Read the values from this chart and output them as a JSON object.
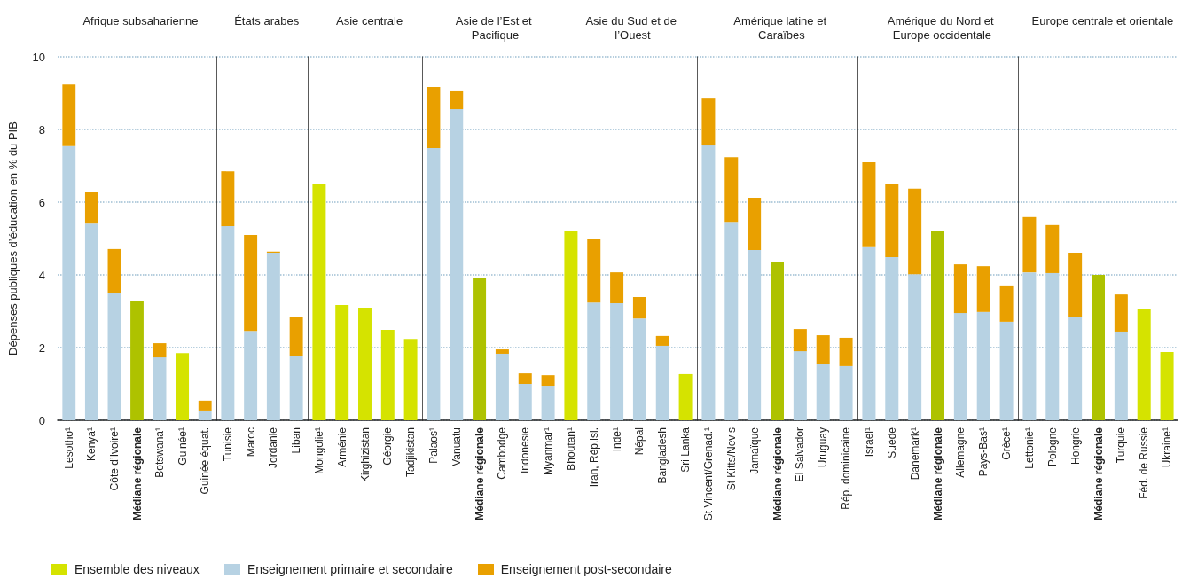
{
  "chart_data": [
    {
      "type": "bar",
      "title": "Afrique subsaharienne",
      "ylabel": "Dépenses publiques d’éducation en % du PIB",
      "categories": [
        "Lesotho¹",
        "Kenya¹",
        "Côte d’Ivoire¹",
        "Médiane régionale",
        "Botswana¹",
        "Guinée¹",
        "Guinée équat."
      ],
      "stacked": true,
      "grid": "y",
      "legend": "bottom",
      "ylim": [
        0,
        10
      ],
      "yticks": [
        0,
        2,
        4,
        6,
        8,
        10
      ],
      "series": [
        {
          "name": "Ensemble des niveaux",
          "color": "#d5e300",
          "colors": [
            "#d5e300",
            "#d5e300",
            "#d5e300",
            "#aec200",
            "#d5e300",
            "#d5e300",
            "#d5e300"
          ],
          "values": [
            null,
            null,
            null,
            3.29,
            null,
            1.85,
            null
          ]
        },
        {
          "name": "Enseignement primaire et secondaire",
          "color": "#b7d2e3",
          "values": [
            7.54,
            5.41,
            3.51,
            null,
            1.73,
            null,
            0.27
          ]
        },
        {
          "name": "Enseignement post-secondaire",
          "color": "#e9a000",
          "values": [
            1.7,
            0.86,
            1.2,
            null,
            0.39,
            null,
            0.27
          ]
        }
      ]
    },
    {
      "type": "bar",
      "title": "États arabes",
      "categories": [
        "Tunisie",
        "Maroc",
        "Jordanie",
        "Liban"
      ],
      "stacked": true,
      "grid": "y",
      "tick_labels": "x",
      "ylim": [
        0,
        10
      ],
      "yticks": [
        0,
        2,
        4,
        6,
        8,
        10
      ],
      "series": [
        {
          "color": "#d5e300",
          "colors": [
            "#d5e300",
            "#d5e300",
            "#d5e300",
            "#d5e300"
          ],
          "values": [
            null,
            null,
            null,
            null
          ]
        },
        {
          "color": "#b7d2e3",
          "values": [
            5.34,
            2.46,
            4.61,
            1.78
          ]
        },
        {
          "color": "#e9a000",
          "values": [
            1.51,
            2.64,
            0.03,
            1.07
          ]
        }
      ]
    },
    {
      "type": "bar",
      "title": "Asie centrale",
      "categories": [
        "Mongolie¹",
        "Arménie",
        "Kirghizistan",
        "Géorgie",
        "Tadjikistan"
      ],
      "stacked": true,
      "grid": "y",
      "tick_labels": "x",
      "ylim": [
        0,
        10
      ],
      "yticks": [
        0,
        2,
        4,
        6,
        8,
        10
      ],
      "series": [
        {
          "color": "#d5e300",
          "colors": [
            "#d5e300",
            "#d5e300",
            "#d5e300",
            "#d5e300",
            "#d5e300"
          ],
          "values": [
            6.51,
            3.17,
            3.1,
            2.49,
            2.24
          ]
        },
        {
          "color": "#b7d2e3",
          "values": [
            null,
            null,
            null,
            null,
            null
          ]
        },
        {
          "color": "#e9a000",
          "values": [
            null,
            null,
            null,
            null,
            null
          ]
        }
      ]
    },
    {
      "type": "bar",
      "title": "Asie de l’Est et Pacifique",
      "categories": [
        "Palaos¹",
        "Vanuatu",
        "Médiane régionale",
        "Cambodge",
        "Indonésie",
        "Myanmar¹"
      ],
      "stacked": true,
      "grid": "y",
      "tick_labels": "x",
      "ylim": [
        0,
        10
      ],
      "yticks": [
        0,
        2,
        4,
        6,
        8,
        10
      ],
      "series": [
        {
          "color": "#d5e300",
          "colors": [
            "#d5e300",
            "#d5e300",
            "#aec200",
            "#d5e300",
            "#d5e300",
            "#d5e300"
          ],
          "values": [
            null,
            null,
            3.9,
            null,
            null,
            null
          ]
        },
        {
          "color": "#b7d2e3",
          "values": [
            7.49,
            8.56,
            null,
            1.83,
            1.0,
            0.95
          ]
        },
        {
          "color": "#e9a000",
          "values": [
            1.68,
            0.49,
            null,
            0.12,
            0.29,
            0.29
          ]
        }
      ]
    },
    {
      "type": "bar",
      "title": "Asie du Sud et de l’Ouest",
      "categories": [
        "Bhoutan¹",
        "Iran, Rép.isl.",
        "Inde¹",
        "Népal",
        "Bangladesh",
        "Sri Lanka"
      ],
      "stacked": true,
      "grid": "y",
      "tick_labels": "x",
      "ylim": [
        0,
        10
      ],
      "yticks": [
        0,
        2,
        4,
        6,
        8,
        10
      ],
      "series": [
        {
          "color": "#d5e300",
          "colors": [
            "#d5e300",
            "#d5e300",
            "#d5e300",
            "#d5e300",
            "#d5e300",
            "#d5e300"
          ],
          "values": [
            5.2,
            null,
            null,
            null,
            null,
            1.27
          ]
        },
        {
          "color": "#b7d2e3",
          "values": [
            null,
            3.24,
            3.22,
            2.8,
            2.05,
            null
          ]
        },
        {
          "color": "#e9a000",
          "values": [
            null,
            1.76,
            0.85,
            0.59,
            0.27,
            null
          ]
        }
      ]
    },
    {
      "type": "bar",
      "title": "Amérique latine et Caraïbes",
      "categories": [
        "St Vincent/Grenad.¹",
        "St Kitts/Nevis",
        "Jamaïque",
        "Médiane régionale",
        "El Salvador",
        "Uruguay",
        "Rép. dominicaine"
      ],
      "stacked": true,
      "grid": "y",
      "tick_labels": "x",
      "ylim": [
        0,
        10
      ],
      "yticks": [
        0,
        2,
        4,
        6,
        8,
        10
      ],
      "series": [
        {
          "color": "#d5e300",
          "colors": [
            "#d5e300",
            "#d5e300",
            "#d5e300",
            "#aec200",
            "#d5e300",
            "#d5e300",
            "#d5e300"
          ],
          "values": [
            null,
            null,
            null,
            4.34,
            null,
            null,
            null
          ]
        },
        {
          "color": "#b7d2e3",
          "values": [
            7.56,
            5.46,
            4.68,
            null,
            1.9,
            1.56,
            1.49
          ]
        },
        {
          "color": "#e9a000",
          "values": [
            1.29,
            1.78,
            1.44,
            null,
            0.61,
            0.78,
            0.78
          ]
        }
      ]
    },
    {
      "type": "bar",
      "title": "Amérique du Nord et Europe occidentale",
      "categories": [
        "Israël¹",
        "Suède",
        "Danemark¹",
        "Médiane régionale",
        "Allemagne",
        "Pays-Bas¹",
        "Grèce¹"
      ],
      "stacked": true,
      "grid": "y",
      "tick_labels": "x",
      "ylim": [
        0,
        10
      ],
      "yticks": [
        0,
        2,
        4,
        6,
        8,
        10
      ],
      "series": [
        {
          "color": "#d5e300",
          "colors": [
            "#d5e300",
            "#d5e300",
            "#d5e300",
            "#aec200",
            "#d5e300",
            "#d5e300",
            "#d5e300"
          ],
          "values": [
            null,
            null,
            null,
            5.2,
            null,
            null,
            null
          ]
        },
        {
          "color": "#b7d2e3",
          "values": [
            4.76,
            4.49,
            4.02,
            null,
            2.95,
            2.98,
            2.71
          ]
        },
        {
          "color": "#e9a000",
          "values": [
            2.34,
            2.0,
            2.35,
            null,
            1.34,
            1.26,
            1.0
          ]
        }
      ]
    },
    {
      "type": "bar",
      "title": "Europe centrale et orientale",
      "categories": [
        "Lettonie¹",
        "Pologne",
        "Hongrie",
        "Médiane régionale",
        "Turquie",
        "Féd. de Russie",
        "Ukraine¹"
      ],
      "stacked": true,
      "grid": "y",
      "tick_labels": "x",
      "ylim": [
        0,
        10
      ],
      "yticks": [
        0,
        2,
        4,
        6,
        8,
        10
      ],
      "series": [
        {
          "color": "#d5e300",
          "colors": [
            "#d5e300",
            "#d5e300",
            "#d5e300",
            "#aec200",
            "#d5e300",
            "#d5e300",
            "#d5e300"
          ],
          "values": [
            null,
            null,
            null,
            4.0,
            null,
            3.07,
            1.88
          ]
        },
        {
          "color": "#b7d2e3",
          "values": [
            4.07,
            4.05,
            2.83,
            null,
            2.44,
            null,
            null
          ]
        },
        {
          "color": "#e9a000",
          "values": [
            1.52,
            1.32,
            1.78,
            null,
            1.02,
            null,
            null
          ]
        }
      ]
    }
  ]
}
